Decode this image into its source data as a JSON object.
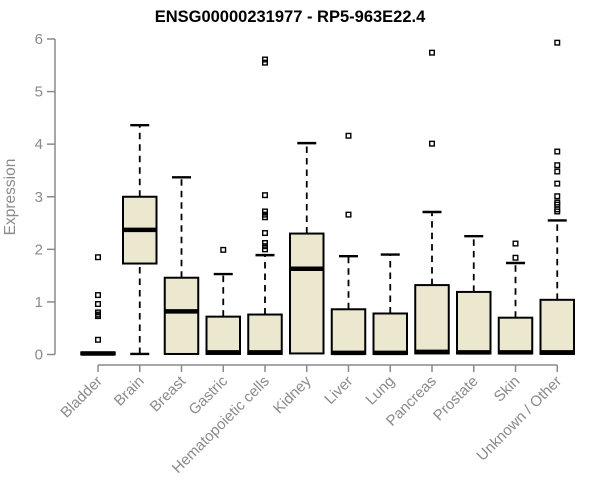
{
  "chart_data": {
    "type": "box",
    "title": "ENSG00000231977 - RP5-963E22.4",
    "ylabel": "Expression",
    "xlabel": "",
    "ylim": [
      0,
      6
    ],
    "yticks": [
      0,
      1,
      2,
      3,
      4,
      5,
      6
    ],
    "grid": false,
    "legend": "none",
    "box_fill": "#ECE7CF",
    "box_border": "#000000",
    "axis_color": "#8a8a8a",
    "categories": [
      "Bladder",
      "Brain",
      "Breast",
      "Gastric",
      "Hematopoietic cells",
      "Kidney",
      "Liver",
      "Lung",
      "Pancreas",
      "Prostate",
      "Skin",
      "Unknown / Other"
    ],
    "series": [
      {
        "name": "Bladder",
        "min": 0.0,
        "q1": 0.0,
        "median": 0.02,
        "q3": 0.04,
        "max": 0.04,
        "outliers": [
          1.85,
          1.13,
          0.96,
          0.8,
          0.76,
          0.73,
          0.28
        ]
      },
      {
        "name": "Brain",
        "min": 0.01,
        "q1": 1.73,
        "median": 2.37,
        "q3": 3.0,
        "max": 4.36,
        "outliers": []
      },
      {
        "name": "Breast",
        "min": 0.01,
        "q1": 0.01,
        "median": 0.82,
        "q3": 1.46,
        "max": 3.37,
        "outliers": []
      },
      {
        "name": "Gastric",
        "min": 0.01,
        "q1": 0.01,
        "median": 0.04,
        "q3": 0.72,
        "max": 1.53,
        "outliers": [
          1.99
        ]
      },
      {
        "name": "Hematopoietic cells",
        "min": 0.01,
        "q1": 0.01,
        "median": 0.04,
        "q3": 0.76,
        "max": 1.89,
        "outliers": [
          5.61,
          5.55,
          3.03,
          2.72,
          2.66,
          2.61,
          2.31,
          2.12,
          2.06,
          2.0
        ]
      },
      {
        "name": "Kidney",
        "min": 0.02,
        "q1": 0.02,
        "median": 1.63,
        "q3": 2.3,
        "max": 4.02,
        "outliers": []
      },
      {
        "name": "Liver",
        "min": 0.01,
        "q1": 0.01,
        "median": 0.03,
        "q3": 0.86,
        "max": 1.87,
        "outliers": [
          4.16,
          2.66
        ]
      },
      {
        "name": "Lung",
        "min": 0.01,
        "q1": 0.01,
        "median": 0.03,
        "q3": 0.78,
        "max": 1.9,
        "outliers": []
      },
      {
        "name": "Pancreas",
        "min": 0.02,
        "q1": 0.02,
        "median": 0.05,
        "q3": 1.32,
        "max": 2.71,
        "outliers": [
          5.74,
          4.01
        ]
      },
      {
        "name": "Prostate",
        "min": 0.02,
        "q1": 0.02,
        "median": 0.04,
        "q3": 1.19,
        "max": 2.25,
        "outliers": []
      },
      {
        "name": "Skin",
        "min": 0.02,
        "q1": 0.02,
        "median": 0.04,
        "q3": 0.7,
        "max": 1.74,
        "outliers": [
          2.11,
          1.84
        ]
      },
      {
        "name": "Unknown / Other",
        "min": 0.01,
        "q1": 0.01,
        "median": 0.04,
        "q3": 1.04,
        "max": 2.55,
        "outliers": [
          5.93,
          3.86,
          3.6,
          3.48,
          3.25,
          3.01,
          2.89,
          2.85,
          2.76,
          2.72
        ]
      }
    ]
  }
}
